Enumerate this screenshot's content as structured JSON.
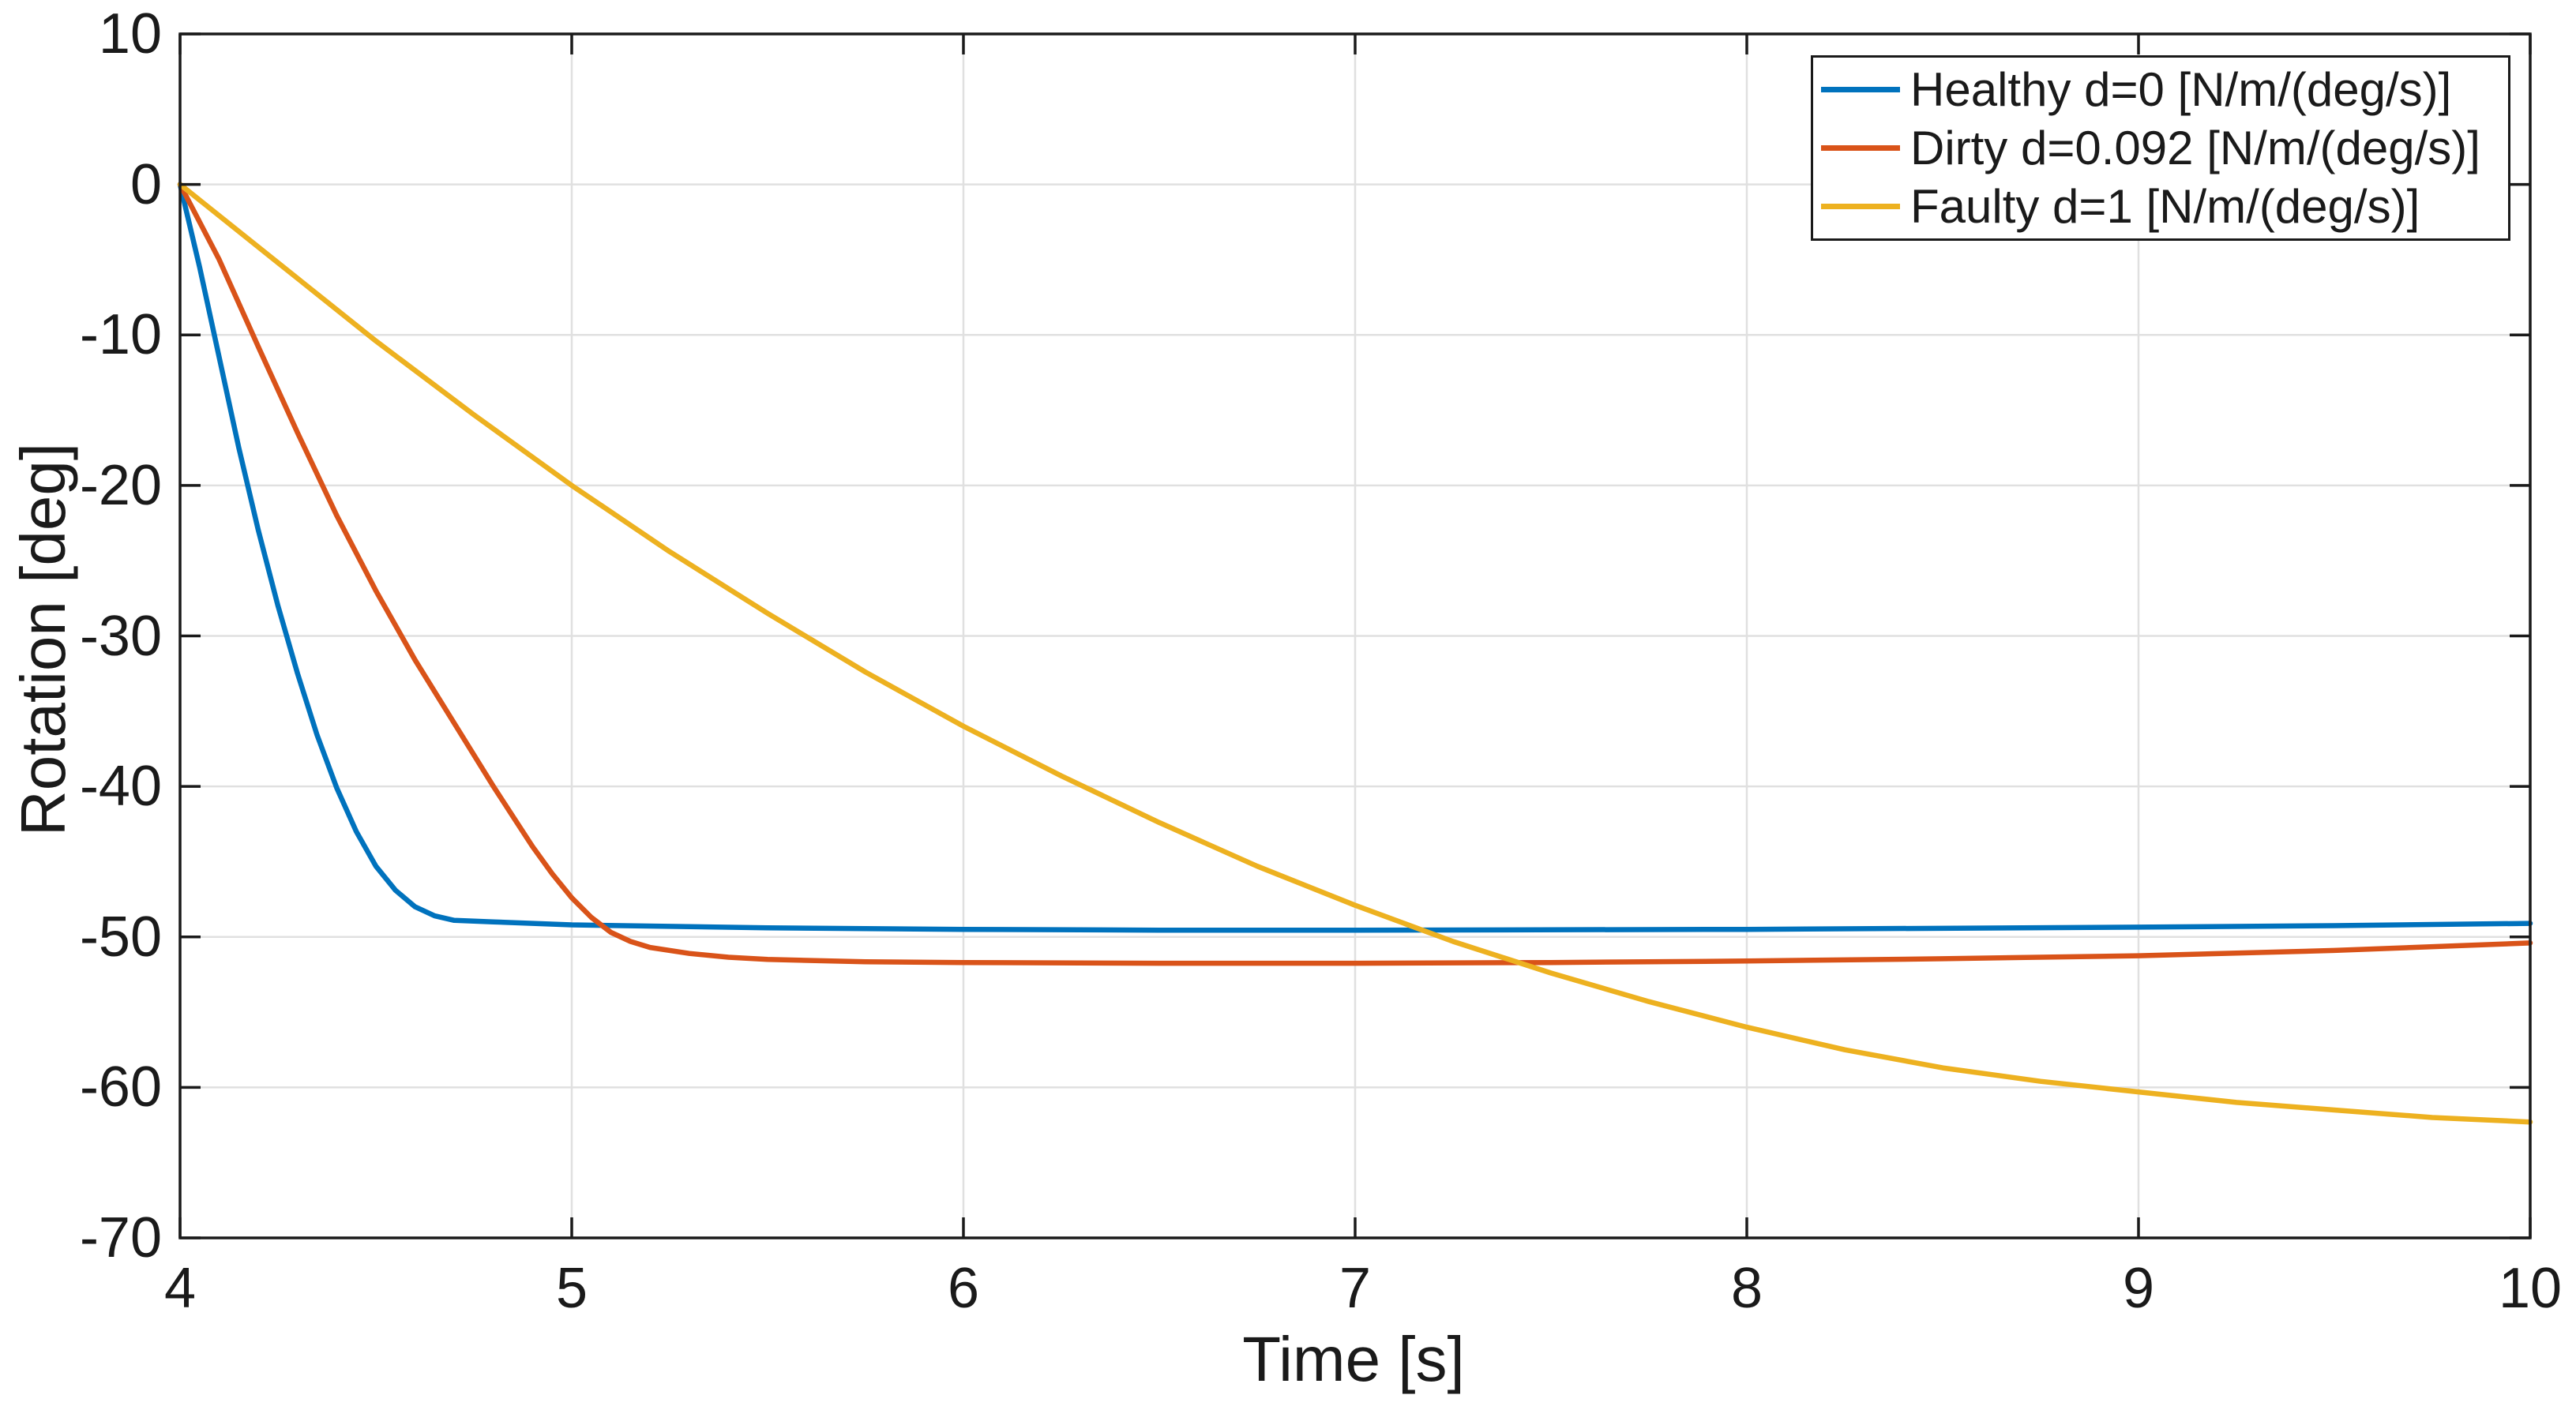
{
  "chart_data": {
    "type": "line",
    "title": "",
    "xlabel": "Time [s]",
    "ylabel": "Rotation [deg]",
    "xlim": [
      4,
      10
    ],
    "ylim": [
      -70,
      10
    ],
    "x_ticks": [
      4,
      5,
      6,
      7,
      8,
      9,
      10
    ],
    "x_tick_labels": [
      "4",
      "5",
      "6",
      "7",
      "8",
      "9",
      "10"
    ],
    "y_ticks": [
      10,
      0,
      -10,
      -20,
      -30,
      -40,
      -50,
      -60,
      -70
    ],
    "y_tick_labels": [
      "10",
      "0",
      "-10",
      "-20",
      "-30",
      "-40",
      "-50",
      "-60",
      "-70"
    ],
    "grid": true,
    "legend_position": "top-right",
    "series": [
      {
        "name": "Healthy d=0 [N/m/(deg/s)]",
        "color": "#0072BD",
        "points": [
          [
            4,
            0
          ],
          [
            4.05,
            -5.5
          ],
          [
            4.1,
            -11.5
          ],
          [
            4.15,
            -17.5
          ],
          [
            4.2,
            -23
          ],
          [
            4.25,
            -28
          ],
          [
            4.3,
            -32.5
          ],
          [
            4.35,
            -36.6
          ],
          [
            4.4,
            -40.1
          ],
          [
            4.45,
            -43
          ],
          [
            4.5,
            -45.3
          ],
          [
            4.55,
            -46.9
          ],
          [
            4.6,
            -48
          ],
          [
            4.65,
            -48.6
          ],
          [
            4.7,
            -48.9
          ],
          [
            4.8,
            -49.0
          ],
          [
            5,
            -49.2
          ],
          [
            5.5,
            -49.4
          ],
          [
            6,
            -49.5
          ],
          [
            6.5,
            -49.55
          ],
          [
            7,
            -49.55
          ],
          [
            8,
            -49.5
          ],
          [
            9,
            -49.35
          ],
          [
            9.5,
            -49.25
          ],
          [
            10,
            -49.1
          ]
        ]
      },
      {
        "name": "Dirty d=0.092 [N/m/(deg/s)]",
        "color": "#D95319",
        "points": [
          [
            4,
            0
          ],
          [
            4.1,
            -5
          ],
          [
            4.2,
            -10.8
          ],
          [
            4.3,
            -16.5
          ],
          [
            4.4,
            -22
          ],
          [
            4.5,
            -27
          ],
          [
            4.6,
            -31.6
          ],
          [
            4.7,
            -35.8
          ],
          [
            4.8,
            -40
          ],
          [
            4.85,
            -42
          ],
          [
            4.9,
            -44
          ],
          [
            4.95,
            -45.8
          ],
          [
            5,
            -47.4
          ],
          [
            5.05,
            -48.7
          ],
          [
            5.1,
            -49.7
          ],
          [
            5.15,
            -50.3
          ],
          [
            5.2,
            -50.7
          ],
          [
            5.3,
            -51.1
          ],
          [
            5.4,
            -51.35
          ],
          [
            5.5,
            -51.5
          ],
          [
            5.75,
            -51.65
          ],
          [
            6,
            -51.7
          ],
          [
            6.5,
            -51.75
          ],
          [
            7,
            -51.75
          ],
          [
            7.5,
            -51.7
          ],
          [
            8,
            -51.6
          ],
          [
            8.5,
            -51.45
          ],
          [
            9,
            -51.25
          ],
          [
            9.5,
            -50.9
          ],
          [
            10,
            -50.4
          ]
        ]
      },
      {
        "name": "Faulty d=1 [N/m/(deg/s)]",
        "color": "#EDB120",
        "points": [
          [
            4,
            0
          ],
          [
            4.25,
            -5.2
          ],
          [
            4.5,
            -10.4
          ],
          [
            4.75,
            -15.3
          ],
          [
            5,
            -20
          ],
          [
            5.25,
            -24.4
          ],
          [
            5.5,
            -28.5
          ],
          [
            5.75,
            -32.4
          ],
          [
            6,
            -36
          ],
          [
            6.25,
            -39.3
          ],
          [
            6.5,
            -42.4
          ],
          [
            6.75,
            -45.3
          ],
          [
            7,
            -47.9
          ],
          [
            7.25,
            -50.3
          ],
          [
            7.5,
            -52.4
          ],
          [
            7.75,
            -54.3
          ],
          [
            8,
            -56
          ],
          [
            8.25,
            -57.5
          ],
          [
            8.5,
            -58.7
          ],
          [
            8.75,
            -59.6
          ],
          [
            9,
            -60.3
          ],
          [
            9.25,
            -61
          ],
          [
            9.5,
            -61.5
          ],
          [
            9.75,
            -62
          ],
          [
            10,
            -62.3
          ]
        ]
      }
    ]
  },
  "colors": {
    "background": "#FFFFFF",
    "grid": "#E0E0E0",
    "axis": "#1A1A1A",
    "text": "#1A1A1A"
  }
}
